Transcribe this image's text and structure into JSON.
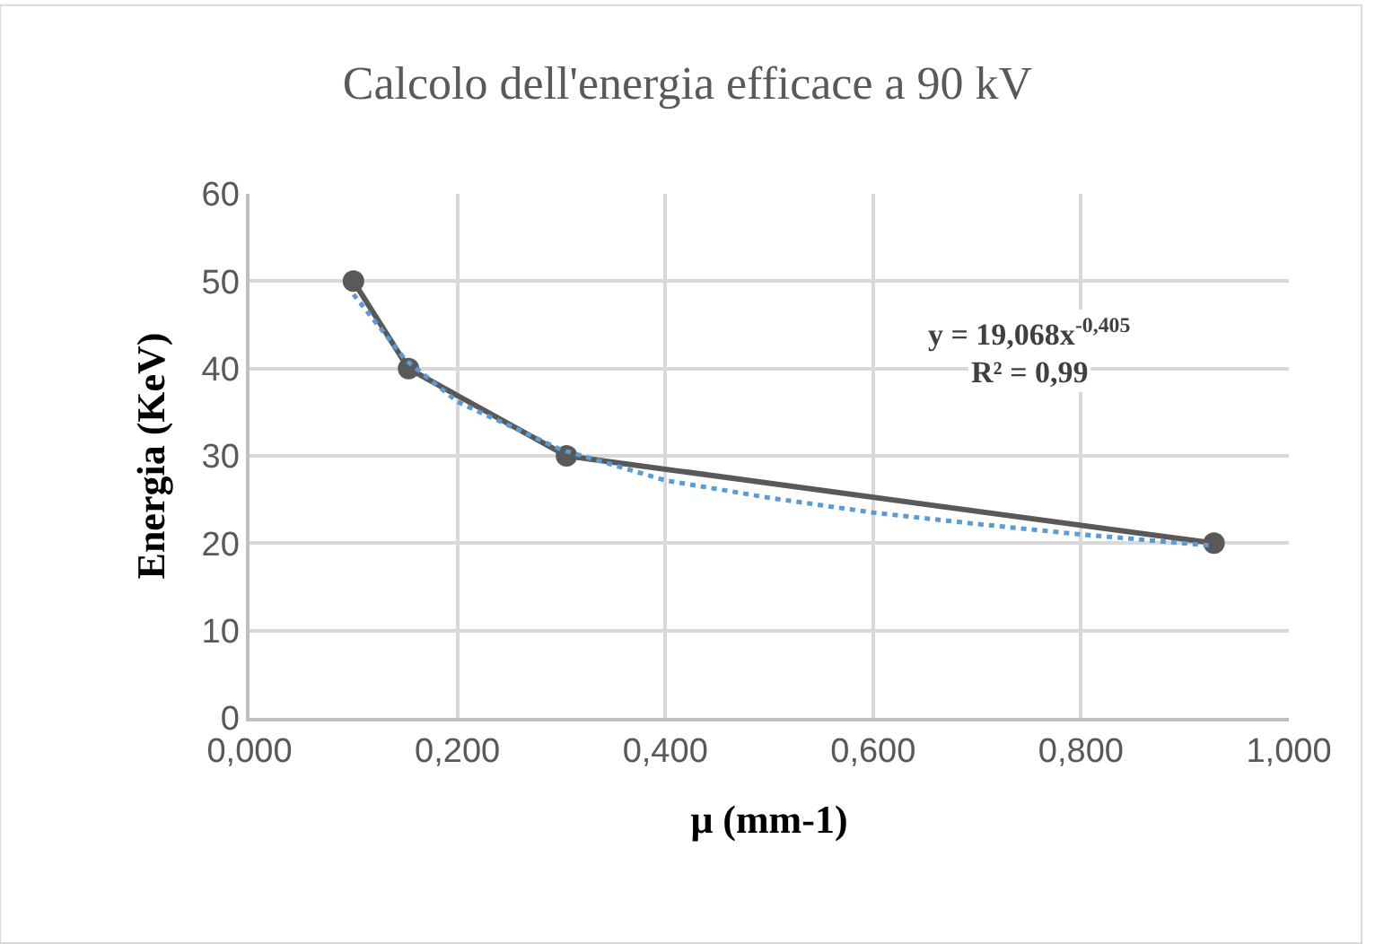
{
  "chart_data": {
    "type": "line",
    "title": "Calcolo dell'energia efficace a 90 kV",
    "xlabel": "μ (mm-1)",
    "ylabel": "Energia (KeV)",
    "xlim": [
      0,
      1
    ],
    "xticks": [
      {
        "value": 0,
        "label": "0,000"
      },
      {
        "value": 0.2,
        "label": "0,200"
      },
      {
        "value": 0.4,
        "label": "0,400"
      },
      {
        "value": 0.6,
        "label": "0,600"
      },
      {
        "value": 0.8,
        "label": "0,800"
      },
      {
        "value": 1,
        "label": "1,000"
      }
    ],
    "ylim": [
      0,
      60
    ],
    "yticks": [
      0,
      10,
      20,
      30,
      40,
      50,
      60
    ],
    "grid": true,
    "series": [
      {
        "color": "#595959",
        "marker": "circle",
        "line_style": "solid",
        "x": [
          0.1,
          0.153,
          0.305,
          0.928
        ],
        "values": [
          50,
          40,
          30,
          20
        ]
      },
      {
        "color": "#5b9bd5",
        "marker": "none",
        "line_style": "dotted",
        "x": [
          0.1,
          0.15,
          0.2,
          0.3,
          0.4,
          0.5,
          0.6,
          0.7,
          0.8,
          0.928
        ],
        "values": [
          48.5,
          41.0,
          36.2,
          30.7,
          27.2,
          25.2,
          23.5,
          22.2,
          21.0,
          19.7
        ]
      }
    ],
    "annotations": [
      "y = 19,068x$^{-0,405}$",
      "R² = 0,99"
    ]
  }
}
